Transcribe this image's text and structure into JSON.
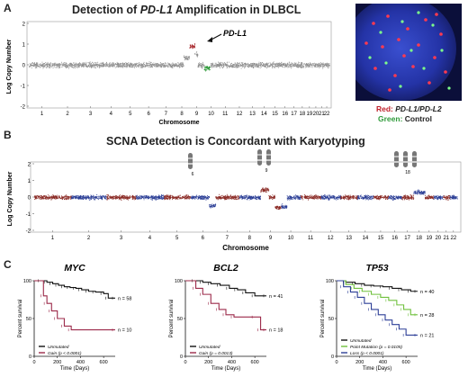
{
  "panel_a": {
    "letter": "A",
    "title_pre": "Detection of ",
    "title_gene": "PD-L1",
    "title_post": " Amplification in DLBCL",
    "ylabel": "Log Copy Number",
    "xlabel": "Chromosome",
    "annotation": "PD-L1",
    "fish_legend_red_label": "Red: ",
    "fish_legend_red_genes": "PD-L1/PD-L2",
    "fish_legend_green_label": "Green: ",
    "fish_legend_green_text": "Control",
    "colors": {
      "points": "#8f8f8f",
      "red": "#a51f24",
      "green": "#2f9a3a",
      "fish_bg": "#1f2a8c"
    }
  },
  "panel_b": {
    "letter": "B",
    "title": "SCNA Detection is Concordant with Karyotyping",
    "ylabel": "Log Copy Number",
    "xlabel": "Chromosome",
    "karyotype_labels": [
      "6",
      "9",
      "18"
    ],
    "colors": {
      "red": "#8a2a25",
      "blue": "#2c3f96"
    }
  },
  "chart_data": [
    {
      "type": "scatter",
      "id": "A",
      "ylabel": "Log Copy Number",
      "xlabel": "Chromosome",
      "ylim": [
        -2,
        2
      ],
      "yticks": [
        -2,
        -1,
        0,
        1,
        2
      ],
      "categories": [
        "1",
        "2",
        "3",
        "4",
        "5",
        "6",
        "7",
        "8",
        "9",
        "10",
        "11",
        "12",
        "13",
        "14",
        "15",
        "16",
        "17",
        "18",
        "19",
        "20",
        "21",
        "22"
      ]
    },
    {
      "type": "scatter",
      "id": "B",
      "ylabel": "Log Copy Number",
      "xlabel": "Chromosome",
      "ylim": [
        -2,
        2
      ],
      "yticks": [
        -2,
        -1,
        0,
        1,
        2
      ],
      "categories": [
        "1",
        "2",
        "3",
        "4",
        "5",
        "6",
        "7",
        "8",
        "9",
        "10",
        "11",
        "12",
        "13",
        "14",
        "15",
        "16",
        "17",
        "18",
        "19",
        "20",
        "21",
        "22"
      ]
    },
    {
      "type": "line",
      "id": "C-MYC",
      "title": "MYC",
      "ylabel": "Percent survival",
      "xlabel": "Time (Days)",
      "ylim": [
        0,
        100
      ],
      "xlim": [
        0,
        700
      ],
      "yticks": [
        0,
        50,
        100
      ],
      "xticks": [
        0,
        200,
        400,
        600
      ],
      "series": [
        {
          "name": "Unmutated",
          "color": "#111111",
          "n_label": "n = 58",
          "x": [
            0,
            60,
            110,
            160,
            210,
            260,
            310,
            360,
            410,
            470,
            530,
            600,
            640,
            700
          ],
          "y": [
            100,
            100,
            98,
            96,
            94,
            92,
            91,
            90,
            88,
            86,
            85,
            83,
            77,
            77
          ]
        },
        {
          "name": "Gain (p < 0.0001)",
          "color": "#9c2a4a",
          "n_label": "n = 10",
          "x": [
            0,
            80,
            110,
            150,
            200,
            260,
            320,
            700
          ],
          "y": [
            100,
            80,
            70,
            60,
            50,
            40,
            35,
            35
          ]
        }
      ]
    },
    {
      "type": "line",
      "id": "C-BCL2",
      "title": "BCL2",
      "ylabel": "Percent survival",
      "xlabel": "Time (Days)",
      "ylim": [
        0,
        100
      ],
      "xlim": [
        0,
        700
      ],
      "yticks": [
        0,
        50,
        100
      ],
      "xticks": [
        0,
        200,
        400,
        600
      ],
      "series": [
        {
          "name": "Unmutated",
          "color": "#111111",
          "n_label": "n = 41",
          "x": [
            0,
            80,
            150,
            220,
            300,
            380,
            450,
            520,
            600,
            700
          ],
          "y": [
            100,
            100,
            98,
            96,
            94,
            90,
            88,
            84,
            80,
            80
          ]
        },
        {
          "name": "Gain (p = 0.0013)",
          "color": "#9c2a4a",
          "n_label": "n = 18",
          "x": [
            0,
            90,
            150,
            220,
            290,
            350,
            420,
            600,
            650,
            700
          ],
          "y": [
            100,
            90,
            82,
            70,
            62,
            55,
            52,
            52,
            35,
            35
          ]
        }
      ]
    },
    {
      "type": "line",
      "id": "C-TP53",
      "title": "TP53",
      "ylabel": "Percent survival",
      "xlabel": "Time (Days)",
      "ylim": [
        0,
        100
      ],
      "xlim": [
        0,
        700
      ],
      "yticks": [
        0,
        50,
        100
      ],
      "xticks": [
        0,
        200,
        400,
        600
      ],
      "series": [
        {
          "name": "Unmutated",
          "color": "#111111",
          "n_label": "n = 40",
          "x": [
            0,
            80,
            160,
            240,
            320,
            400,
            480,
            560,
            640,
            700
          ],
          "y": [
            100,
            98,
            96,
            94,
            93,
            92,
            90,
            88,
            86,
            86
          ]
        },
        {
          "name": "Point Mutation (p = 0.0105)",
          "color": "#6fc03c",
          "n_label": "n = 28",
          "x": [
            0,
            80,
            150,
            220,
            300,
            380,
            450,
            520,
            580,
            640,
            700
          ],
          "y": [
            100,
            95,
            90,
            86,
            82,
            78,
            74,
            68,
            62,
            55,
            55
          ]
        },
        {
          "name": "Loss (p < 0.0001)",
          "color": "#2d3f97",
          "n_label": "n = 21",
          "x": [
            0,
            60,
            120,
            180,
            240,
            300,
            360,
            420,
            480,
            540,
            600,
            700
          ],
          "y": [
            100,
            92,
            85,
            78,
            70,
            62,
            55,
            48,
            42,
            36,
            28,
            28
          ]
        }
      ]
    }
  ],
  "panel_c": {
    "letter": "C"
  }
}
